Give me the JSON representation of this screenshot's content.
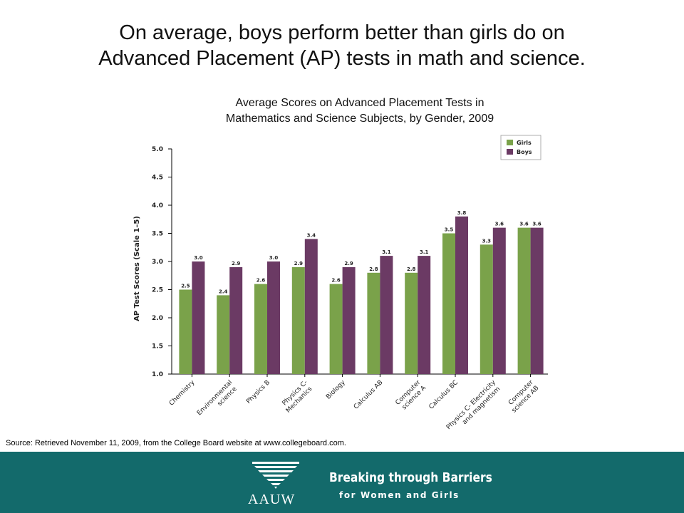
{
  "slide": {
    "headline_line1": "On average,  boys perform better than girls do on",
    "headline_line2": "Advanced Placement (AP) tests in math and science.",
    "source": "Source: Retrieved November 11, 2009, from the College Board website at www.collegeboard.com."
  },
  "footer": {
    "logo_text": "AAUW",
    "tagline": "Breaking through Barriers",
    "tagline_sub": "for Women and Girls"
  },
  "colors": {
    "girls": "#7aa24a",
    "boys": "#6b3a64",
    "footer_bg": "#136a6b"
  },
  "chart_data": {
    "type": "bar",
    "title_line1": "Average Scores on Advanced Placement Tests in",
    "title_line2": "Mathematics and Science Subjects, by Gender, 2009",
    "ylabel": "AP Test Scores (Scale 1–5)",
    "xlabel": "",
    "ylim": [
      1.0,
      5.0
    ],
    "yticks": [
      "1.0",
      "1.5",
      "2.0",
      "2.5",
      "3.0",
      "3.5",
      "4.0",
      "4.5",
      "5.0"
    ],
    "legend_position": "top-right",
    "categories": [
      [
        "Chemistry"
      ],
      [
        "Environmental",
        "science"
      ],
      [
        "Physics B"
      ],
      [
        "Physics C-",
        "Mechanics"
      ],
      [
        "Biology"
      ],
      [
        "Calculus AB"
      ],
      [
        "Computer",
        "science A"
      ],
      [
        "Calculus BC"
      ],
      [
        "Physics C- Electricity",
        "and magnetism"
      ],
      [
        "Computer",
        "science AB"
      ]
    ],
    "series": [
      {
        "name": "Girls",
        "values": [
          2.5,
          2.4,
          2.6,
          2.9,
          2.6,
          2.8,
          2.8,
          3.5,
          3.3,
          3.6
        ],
        "labels": [
          "2.5",
          "2.4",
          "2.6",
          "2.9",
          "2.6",
          "2.8",
          "2.8",
          "3.5",
          "3.3",
          "3.6"
        ]
      },
      {
        "name": "Boys",
        "values": [
          3.0,
          2.9,
          3.0,
          3.4,
          2.9,
          3.1,
          3.1,
          3.8,
          3.6,
          3.6
        ],
        "labels": [
          "3.0",
          "2.9",
          "3.0",
          "3.4",
          "2.9",
          "3.1",
          "3.1",
          "3.8",
          "3.6",
          "3.6"
        ]
      }
    ]
  }
}
